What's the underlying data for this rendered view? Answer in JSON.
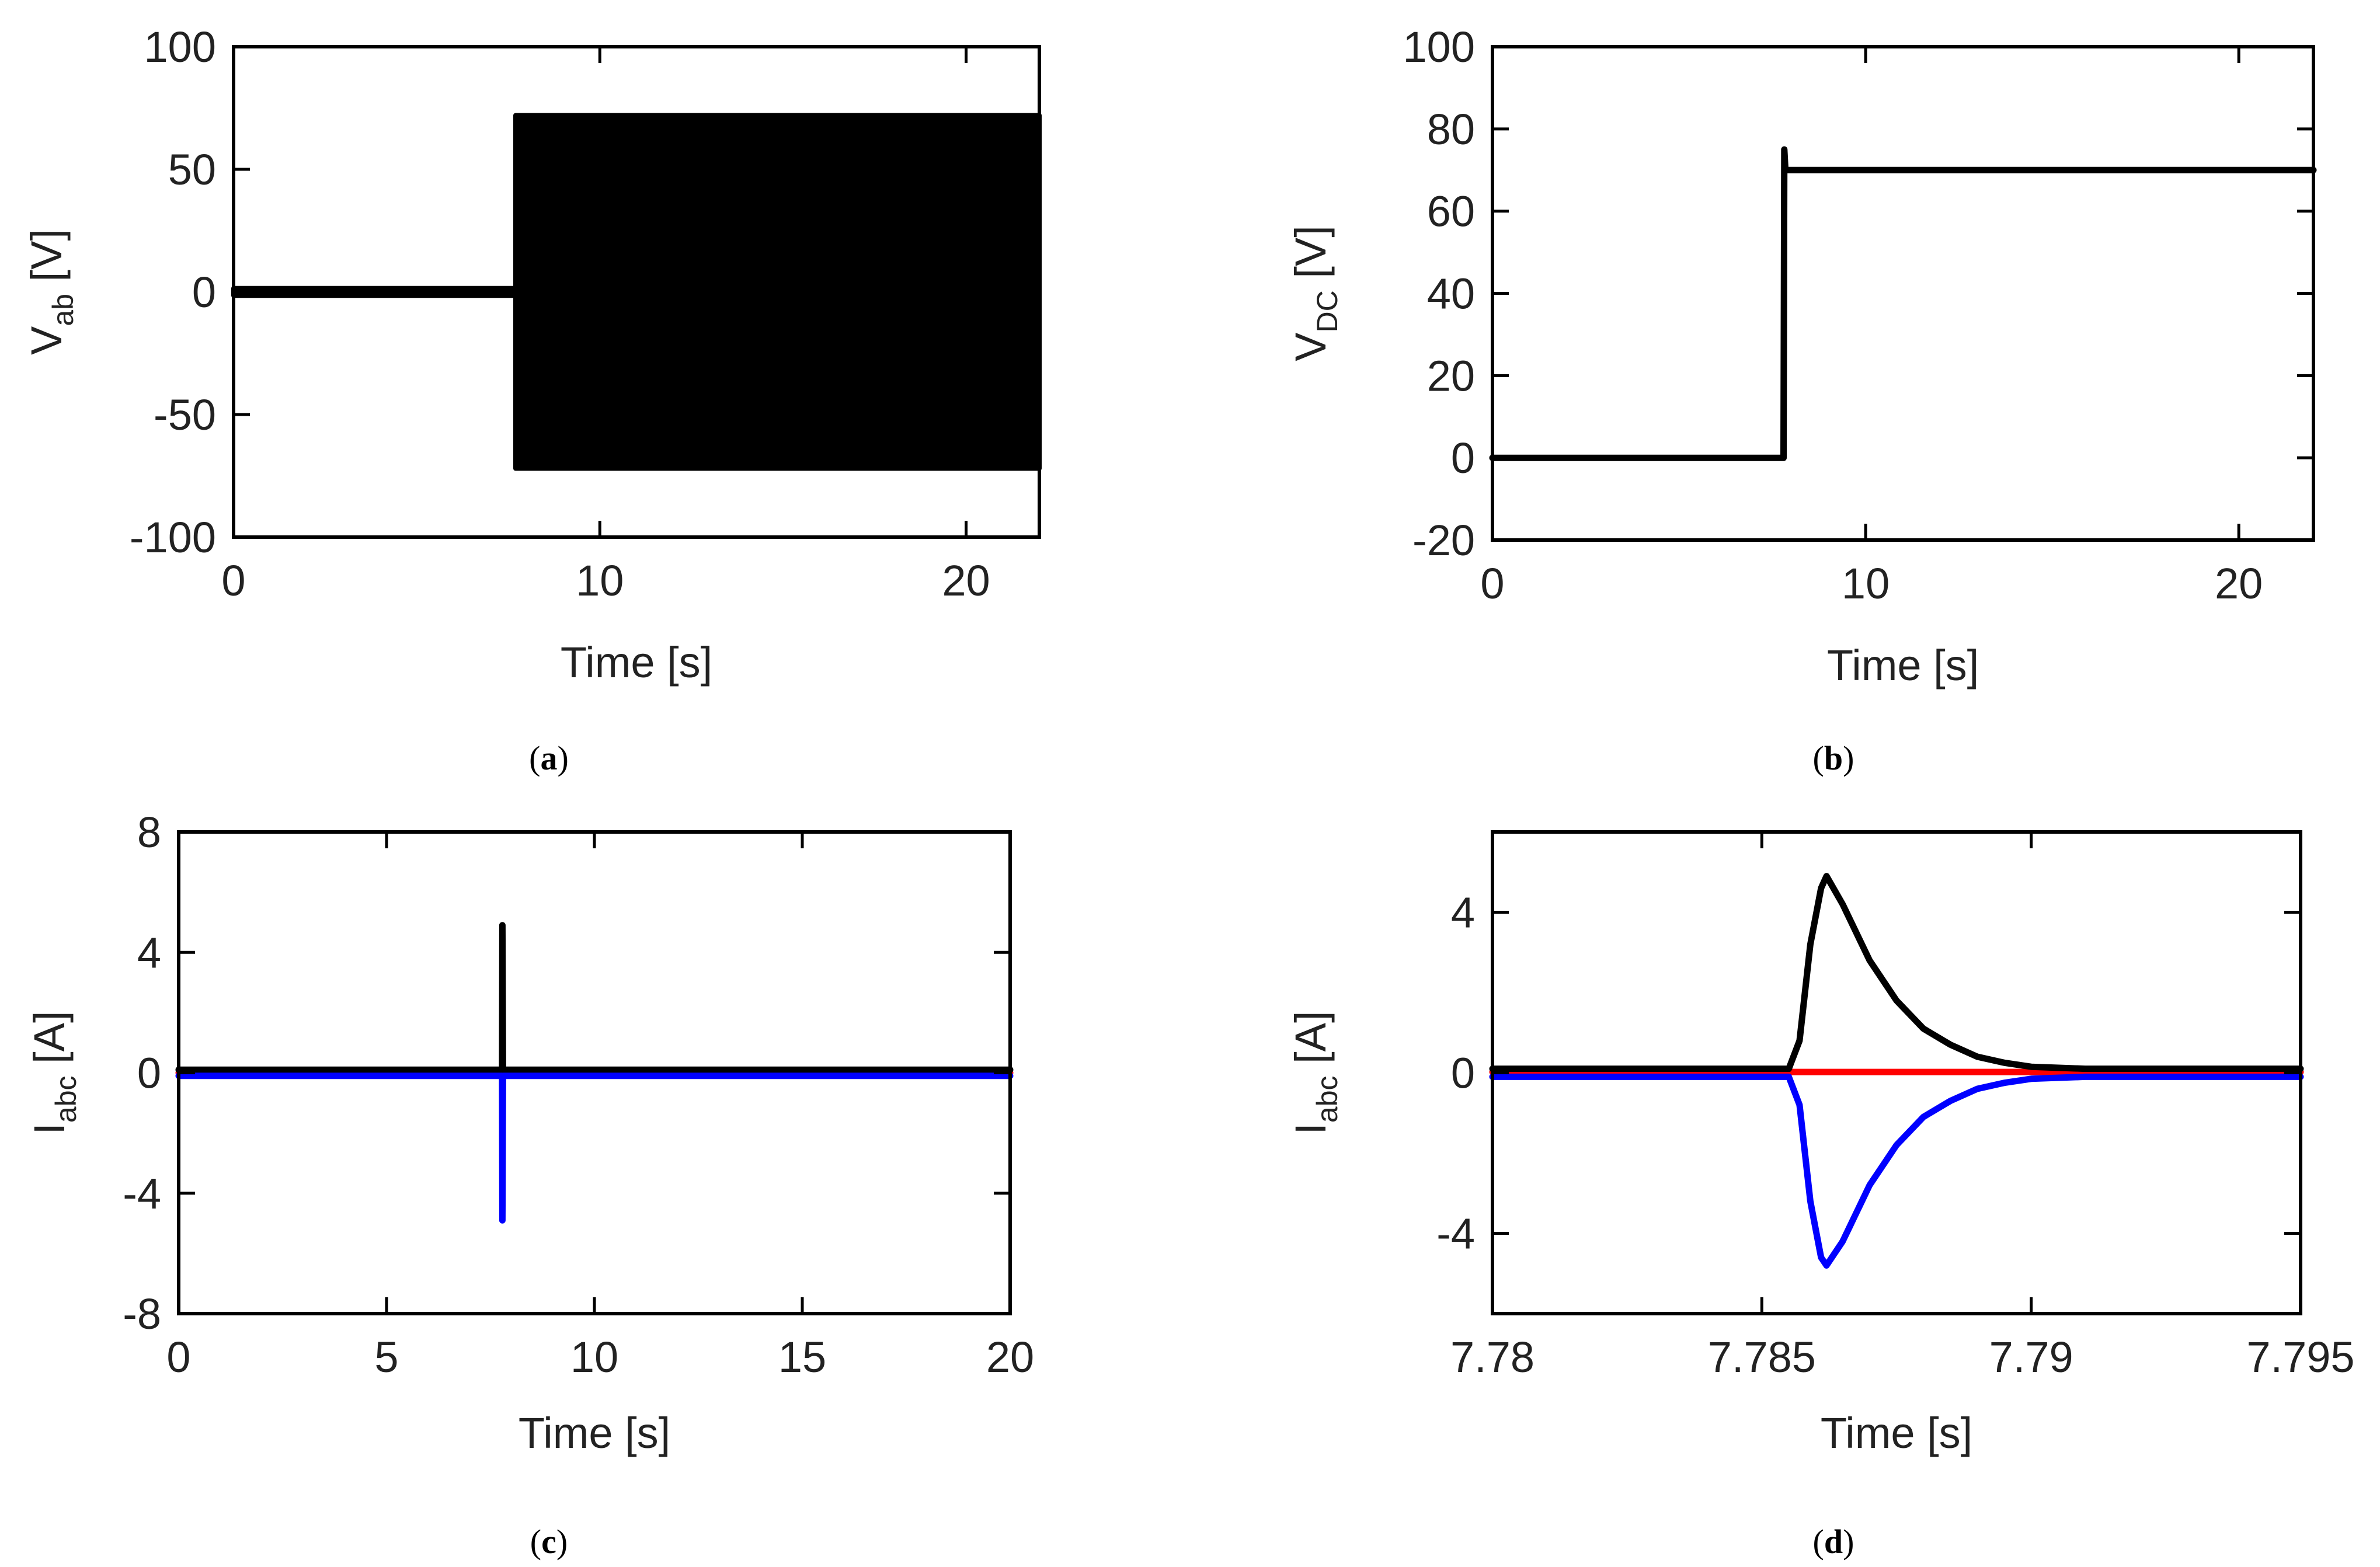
{
  "chart_data": [
    {
      "type": "line",
      "panel": "(a)",
      "caption": {
        "open": "(",
        "letter": "a",
        "close": ")"
      },
      "ylabel": {
        "main": "V",
        "sub": "ab",
        "unit": " [V]"
      },
      "xlabel": "Time [s]",
      "xlim": [
        0,
        22
      ],
      "ylim": [
        -100,
        100
      ],
      "xticks": [
        0,
        10,
        20
      ],
      "xtick_labels": [
        "0",
        "10",
        "20"
      ],
      "yticks": [
        100,
        50,
        0,
        -50,
        -100
      ],
      "ytick_labels": [
        "100",
        "50",
        "0",
        "-50",
        "-100"
      ],
      "grid": false,
      "series": [
        {
          "color": "#000000",
          "style": "oscillation-envelope",
          "x": [
            0,
            7.7,
            7.7,
            22
          ],
          "y_upper": [
            1.5,
            1.5,
            72,
            72
          ],
          "y_lower": [
            -1.5,
            -1.5,
            -72,
            -72
          ]
        }
      ]
    },
    {
      "type": "line",
      "panel": "(b)",
      "caption": {
        "open": "(",
        "letter": "b",
        "close": ")"
      },
      "ylabel": {
        "main": "V",
        "sub": "DC",
        "unit": " [V]"
      },
      "xlabel": "Time [s]",
      "xlim": [
        0,
        22
      ],
      "ylim": [
        -20,
        100
      ],
      "xticks": [
        0,
        10,
        20
      ],
      "xtick_labels": [
        "0",
        "10",
        "20"
      ],
      "yticks": [
        100,
        80,
        60,
        40,
        20,
        0,
        -20
      ],
      "ytick_labels": [
        "100",
        "80",
        "60",
        "40",
        "20",
        "0",
        "-20"
      ],
      "grid": false,
      "series": [
        {
          "color": "#000000",
          "x": [
            0,
            7.8,
            7.82,
            7.85,
            8.0,
            22
          ],
          "y": [
            0,
            0,
            75,
            70,
            70,
            70
          ]
        }
      ]
    },
    {
      "type": "line",
      "panel": "(c)",
      "caption": {
        "open": "(",
        "letter": "c",
        "close": ")"
      },
      "ylabel": {
        "main": "I",
        "sub": "abc",
        "unit": " [A]"
      },
      "xlabel": "Time [s]",
      "xlim": [
        0,
        20
      ],
      "ylim": [
        -8,
        8
      ],
      "xticks": [
        0,
        5,
        10,
        15,
        20
      ],
      "xtick_labels": [
        "0",
        "5",
        "10",
        "15",
        "20"
      ],
      "yticks": [
        8,
        4,
        0,
        -4,
        -8
      ],
      "ytick_labels": [
        "8",
        "4",
        "0",
        "-4",
        "-8"
      ],
      "grid": false,
      "series": [
        {
          "color": "#ff0000",
          "x": [
            0,
            20
          ],
          "y": [
            0,
            0
          ]
        },
        {
          "color": "#000000",
          "x": [
            0,
            7.78,
            7.786,
            7.8,
            20
          ],
          "y": [
            0.1,
            0.1,
            4.9,
            0.1,
            0.1
          ]
        },
        {
          "color": "#0000ff",
          "x": [
            0,
            7.78,
            7.786,
            7.8,
            20
          ],
          "y": [
            -0.1,
            -0.1,
            -4.9,
            -0.1,
            -0.1
          ]
        }
      ]
    },
    {
      "type": "line",
      "panel": "(d)",
      "caption": {
        "open": "(",
        "letter": "d",
        "close": ")"
      },
      "ylabel": {
        "main": "I",
        "sub": "abc",
        "unit": " [A]"
      },
      "xlabel": "Time [s]",
      "xlim": [
        7.78,
        7.795
      ],
      "ylim": [
        -6,
        6
      ],
      "xticks": [
        7.78,
        7.785,
        7.79,
        7.795
      ],
      "xtick_labels": [
        "7.78",
        "7.785",
        "7.79",
        "7.795"
      ],
      "yticks": [
        4,
        0,
        -4
      ],
      "ytick_labels": [
        "4",
        "0",
        "-4"
      ],
      "grid": false,
      "series": [
        {
          "color": "#ff0000",
          "x": [
            7.78,
            7.795
          ],
          "y": [
            0.02,
            0.02
          ]
        },
        {
          "color": "#000000",
          "x": [
            7.78,
            7.7855,
            7.7857,
            7.7859,
            7.7861,
            7.7862,
            7.7865,
            7.787,
            7.7875,
            7.788,
            7.7885,
            7.789,
            7.7895,
            7.79,
            7.791,
            7.795
          ],
          "y": [
            0.1,
            0.1,
            0.8,
            3.2,
            4.6,
            4.9,
            4.2,
            2.8,
            1.8,
            1.1,
            0.7,
            0.4,
            0.25,
            0.15,
            0.1,
            0.1
          ]
        },
        {
          "color": "#0000ff",
          "x": [
            7.78,
            7.7855,
            7.7857,
            7.7859,
            7.7861,
            7.7862,
            7.7865,
            7.787,
            7.7875,
            7.788,
            7.7885,
            7.789,
            7.7895,
            7.79,
            7.791,
            7.795
          ],
          "y": [
            -0.1,
            -0.1,
            -0.8,
            -3.2,
            -4.6,
            -4.8,
            -4.2,
            -2.8,
            -1.8,
            -1.1,
            -0.7,
            -0.4,
            -0.25,
            -0.15,
            -0.1,
            -0.1
          ]
        }
      ]
    }
  ]
}
